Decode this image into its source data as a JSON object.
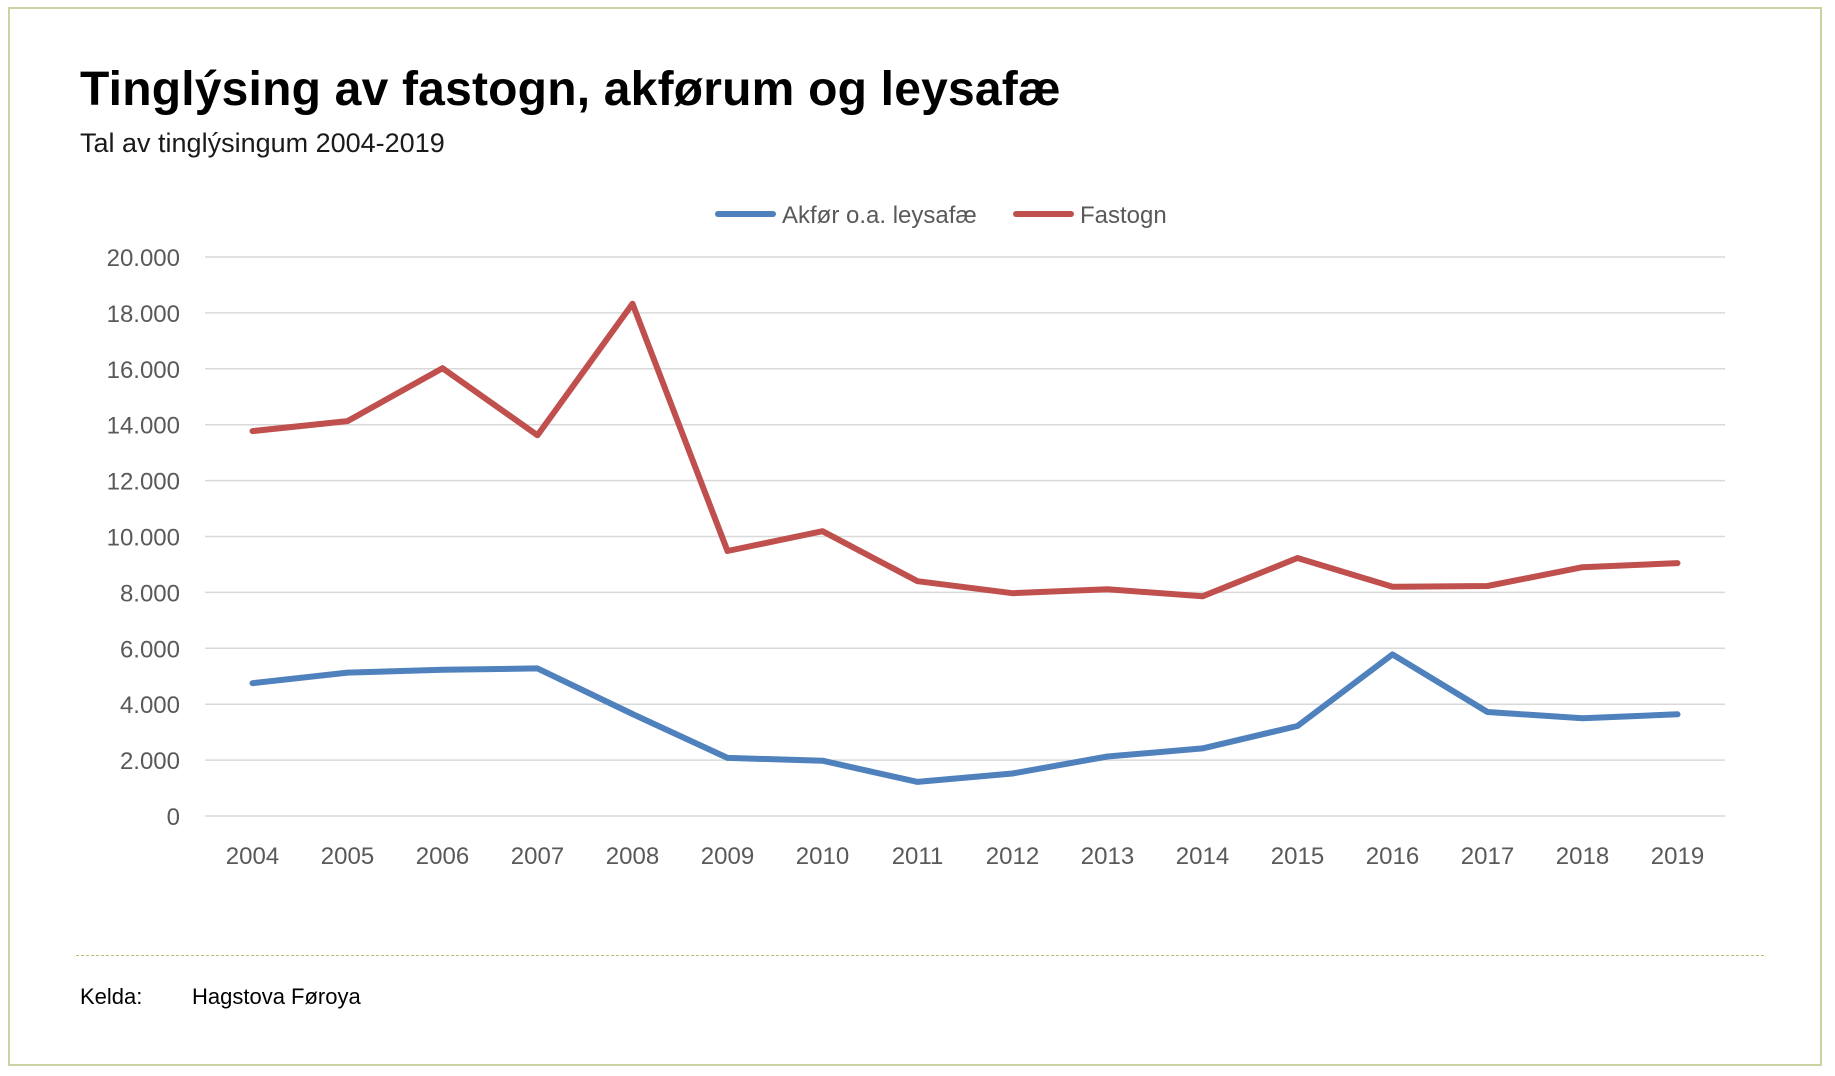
{
  "header": {
    "title": "Tinglýsing av fastogn, akførum og leysafæ",
    "subtitle": "Tal av tinglýsingum 2004-2019"
  },
  "footer": {
    "source_label": "Kelda:",
    "source_value": "Hagstova Føroya"
  },
  "chart_data": {
    "type": "line",
    "title": "Tinglýsing av fastogn, akførum og leysafæ",
    "subtitle": "Tal av tinglýsingum 2004-2019",
    "xlabel": "",
    "ylabel": "",
    "categories": [
      "2004",
      "2005",
      "2006",
      "2007",
      "2008",
      "2009",
      "2010",
      "2011",
      "2012",
      "2013",
      "2014",
      "2015",
      "2016",
      "2017",
      "2018",
      "2019"
    ],
    "ylim": [
      0,
      20000
    ],
    "yticks": [
      0,
      2000,
      4000,
      6000,
      8000,
      10000,
      12000,
      14000,
      16000,
      18000,
      20000
    ],
    "ytick_labels": [
      "0",
      "2.000",
      "4.000",
      "6.000",
      "8.000",
      "10.000",
      "12.000",
      "14.000",
      "16.000",
      "18.000",
      "20.000"
    ],
    "grid": true,
    "legend_position": "top-center",
    "series": [
      {
        "name": "Akfør o.a. leysafæ",
        "color": "#4f81bd",
        "values": [
          4750,
          5130,
          5230,
          5280,
          3650,
          2080,
          1980,
          1220,
          1520,
          2130,
          2420,
          3220,
          5780,
          3720,
          3500,
          3640
        ]
      },
      {
        "name": "Fastogn",
        "color": "#c0504d",
        "values": [
          13770,
          14130,
          16020,
          13620,
          18330,
          9480,
          10190,
          8400,
          7970,
          8110,
          7860,
          9230,
          8200,
          8230,
          8900,
          9050
        ]
      }
    ]
  }
}
